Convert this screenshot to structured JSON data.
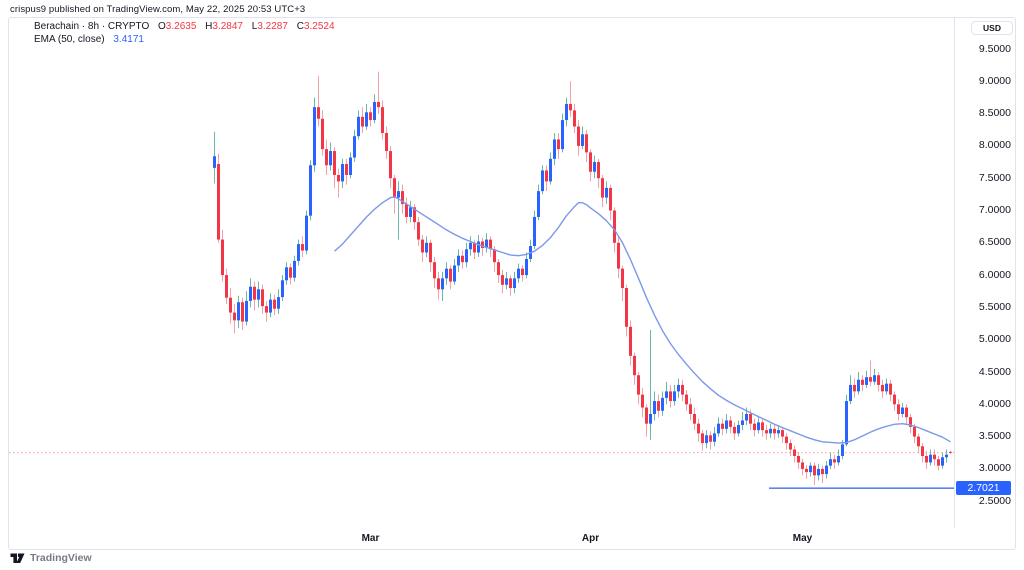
{
  "attribution": "crispus9 published on TradingView.com, May 22, 2025 20:53 UTC+3",
  "watermark_text": "TradingView",
  "legend": {
    "symbol_text": "Berachain · 8h · CRYPTO",
    "o_label": "O",
    "o_value": "3.2635",
    "h_label": "H",
    "h_value": "3.2847",
    "l_label": "L",
    "l_value": "3.2287",
    "c_label": "C",
    "c_value": "3.2524",
    "ema_label": "EMA (50, close)",
    "ema_value": "3.4171"
  },
  "axis": {
    "currency": "USD"
  },
  "colors": {
    "up_body": "#2962ff",
    "up_wick": "#6ab8ac",
    "down_body": "#f23645",
    "down_wick": "#f5a0a8",
    "ema_line": "#7d98e8",
    "support_line": "#5e84f2",
    "current_price_line": "#f2364580",
    "label_bg": "#2962ff",
    "axis_text": "#131722",
    "border": "#e0e3eb"
  },
  "chart_data": {
    "type": "candlestick",
    "title": "Berachain · 8h · CRYPTO",
    "ylabel": "USD",
    "grid": false,
    "legend_position": "top-left",
    "y_axis_range": [
      2.3,
      9.6
    ],
    "price_ticks": [
      9.5,
      9.0,
      8.5,
      8.0,
      7.5,
      7.0,
      6.5,
      6.0,
      5.5,
      5.0,
      4.5,
      4.0,
      3.5,
      3.0,
      2.5
    ],
    "time_ticks": [
      {
        "label": "Mar",
        "index": 39
      },
      {
        "label": "Apr",
        "index": 94
      },
      {
        "label": "May",
        "index": 147
      }
    ],
    "current_price": 3.2524,
    "ohlc_current": {
      "open": 3.2635,
      "high": 3.2847,
      "low": 3.2287,
      "close": 3.2524
    },
    "support_line": {
      "price": 2.7021,
      "label": "2.7021",
      "from_index": 139
    },
    "candles": [
      [
        7.66,
        8.22,
        7.42,
        7.84
      ],
      [
        7.72,
        7.88,
        6.5,
        6.55
      ],
      [
        6.55,
        6.7,
        5.9,
        6.0
      ],
      [
        6.0,
        6.1,
        5.55,
        5.65
      ],
      [
        5.65,
        5.8,
        5.25,
        5.42
      ],
      [
        5.42,
        5.55,
        5.1,
        5.3
      ],
      [
        5.3,
        5.68,
        5.18,
        5.58
      ],
      [
        5.58,
        5.65,
        5.15,
        5.28
      ],
      [
        5.28,
        5.75,
        5.22,
        5.6
      ],
      [
        5.6,
        5.95,
        5.5,
        5.82
      ],
      [
        5.82,
        5.9,
        5.45,
        5.62
      ],
      [
        5.62,
        5.9,
        5.5,
        5.78
      ],
      [
        5.78,
        5.85,
        5.4,
        5.52
      ],
      [
        5.52,
        5.6,
        5.28,
        5.42
      ],
      [
        5.42,
        5.72,
        5.35,
        5.62
      ],
      [
        5.62,
        5.7,
        5.38,
        5.48
      ],
      [
        5.48,
        5.78,
        5.4,
        5.66
      ],
      [
        5.66,
        6.0,
        5.6,
        5.92
      ],
      [
        5.92,
        6.2,
        5.85,
        6.12
      ],
      [
        6.12,
        6.18,
        5.85,
        5.96
      ],
      [
        5.96,
        6.3,
        5.9,
        6.22
      ],
      [
        6.22,
        6.55,
        6.15,
        6.48
      ],
      [
        6.48,
        6.6,
        6.28,
        6.38
      ],
      [
        6.38,
        7.0,
        6.32,
        6.92
      ],
      [
        6.92,
        7.78,
        6.85,
        7.7
      ],
      [
        7.7,
        8.75,
        7.6,
        8.6
      ],
      [
        8.6,
        9.08,
        8.3,
        8.42
      ],
      [
        8.42,
        8.55,
        7.85,
        7.95
      ],
      [
        7.95,
        8.1,
        7.55,
        7.7
      ],
      [
        7.7,
        8.05,
        7.62,
        7.92
      ],
      [
        7.92,
        7.98,
        7.35,
        7.55
      ],
      [
        7.55,
        7.65,
        7.2,
        7.45
      ],
      [
        7.45,
        7.8,
        7.35,
        7.72
      ],
      [
        7.72,
        7.8,
        7.4,
        7.55
      ],
      [
        7.55,
        7.9,
        7.5,
        7.82
      ],
      [
        7.82,
        8.25,
        7.75,
        8.15
      ],
      [
        8.15,
        8.55,
        8.1,
        8.45
      ],
      [
        8.45,
        8.6,
        8.2,
        8.3
      ],
      [
        8.3,
        8.65,
        8.25,
        8.52
      ],
      [
        8.52,
        8.6,
        8.3,
        8.4
      ],
      [
        8.4,
        8.8,
        8.35,
        8.68
      ],
      [
        8.68,
        9.15,
        8.5,
        8.6
      ],
      [
        8.6,
        8.7,
        8.1,
        8.2
      ],
      [
        8.2,
        8.3,
        7.8,
        7.92
      ],
      [
        7.92,
        8.0,
        7.35,
        7.5
      ],
      [
        7.5,
        7.55,
        6.95,
        7.2
      ],
      [
        7.2,
        7.45,
        6.55,
        7.3
      ],
      [
        7.3,
        7.4,
        6.95,
        7.1
      ],
      [
        7.1,
        7.2,
        6.8,
        6.9
      ],
      [
        6.9,
        7.15,
        6.82,
        7.05
      ],
      [
        7.05,
        7.1,
        6.7,
        6.82
      ],
      [
        6.82,
        6.9,
        6.45,
        6.55
      ],
      [
        6.55,
        6.62,
        6.2,
        6.35
      ],
      [
        6.35,
        6.6,
        6.28,
        6.5
      ],
      [
        6.5,
        6.55,
        6.05,
        6.2
      ],
      [
        6.2,
        6.28,
        5.8,
        5.95
      ],
      [
        5.95,
        6.05,
        5.62,
        5.78
      ],
      [
        5.78,
        6.05,
        5.6,
        5.95
      ],
      [
        5.95,
        6.2,
        5.85,
        6.1
      ],
      [
        6.1,
        6.15,
        5.78,
        5.9
      ],
      [
        5.9,
        6.25,
        5.85,
        6.15
      ],
      [
        6.15,
        6.4,
        6.05,
        6.3
      ],
      [
        6.3,
        6.38,
        6.1,
        6.2
      ],
      [
        6.2,
        6.5,
        6.12,
        6.4
      ],
      [
        6.4,
        6.6,
        6.3,
        6.5
      ],
      [
        6.5,
        6.55,
        6.25,
        6.35
      ],
      [
        6.35,
        6.62,
        6.28,
        6.52
      ],
      [
        6.52,
        6.58,
        6.3,
        6.42
      ],
      [
        6.42,
        6.65,
        6.35,
        6.55
      ],
      [
        6.55,
        6.6,
        6.28,
        6.4
      ],
      [
        6.4,
        6.45,
        6.05,
        6.2
      ],
      [
        6.2,
        6.25,
        5.88,
        6.0
      ],
      [
        6.0,
        6.08,
        5.72,
        5.85
      ],
      [
        5.85,
        6.05,
        5.78,
        5.95
      ],
      [
        5.95,
        6.0,
        5.68,
        5.8
      ],
      [
        5.8,
        6.05,
        5.72,
        5.95
      ],
      [
        5.95,
        6.18,
        5.88,
        6.1
      ],
      [
        6.1,
        6.15,
        5.9,
        6.0
      ],
      [
        6.0,
        6.35,
        5.95,
        6.25
      ],
      [
        6.25,
        6.55,
        6.2,
        6.45
      ],
      [
        6.45,
        7.0,
        6.4,
        6.9
      ],
      [
        6.9,
        7.4,
        6.85,
        7.3
      ],
      [
        7.3,
        7.7,
        7.25,
        7.62
      ],
      [
        7.62,
        7.7,
        7.3,
        7.45
      ],
      [
        7.45,
        7.9,
        7.4,
        7.8
      ],
      [
        7.8,
        8.2,
        7.7,
        8.1
      ],
      [
        8.1,
        8.2,
        7.8,
        7.95
      ],
      [
        7.95,
        8.5,
        7.9,
        8.4
      ],
      [
        8.4,
        8.75,
        8.3,
        8.65
      ],
      [
        8.65,
        9.0,
        8.45,
        8.55
      ],
      [
        8.55,
        8.65,
        8.2,
        8.3
      ],
      [
        8.3,
        8.4,
        7.85,
        8.0
      ],
      [
        8.0,
        8.3,
        7.95,
        8.18
      ],
      [
        8.18,
        8.25,
        7.75,
        7.9
      ],
      [
        7.9,
        7.95,
        7.45,
        7.6
      ],
      [
        7.6,
        7.85,
        7.5,
        7.75
      ],
      [
        7.75,
        7.8,
        7.35,
        7.5
      ],
      [
        7.5,
        7.55,
        7.05,
        7.2
      ],
      [
        7.2,
        7.45,
        7.1,
        7.35
      ],
      [
        7.35,
        7.4,
        6.85,
        7.0
      ],
      [
        7.0,
        7.05,
        6.35,
        6.5
      ],
      [
        6.5,
        6.6,
        5.95,
        6.1
      ],
      [
        6.1,
        6.15,
        5.6,
        5.8
      ],
      [
        5.8,
        5.85,
        5.05,
        5.2
      ],
      [
        5.2,
        5.3,
        4.6,
        4.75
      ],
      [
        4.75,
        4.8,
        4.3,
        4.45
      ],
      [
        4.45,
        4.5,
        4.0,
        4.15
      ],
      [
        4.15,
        4.25,
        3.8,
        3.95
      ],
      [
        3.95,
        4.0,
        3.5,
        3.7
      ],
      [
        3.7,
        5.15,
        3.45,
        3.85
      ],
      [
        3.85,
        4.2,
        3.75,
        4.05
      ],
      [
        4.05,
        4.15,
        3.8,
        3.9
      ],
      [
        3.9,
        4.2,
        3.82,
        4.1
      ],
      [
        4.1,
        4.35,
        4.0,
        4.2
      ],
      [
        4.2,
        4.3,
        3.95,
        4.05
      ],
      [
        4.05,
        4.3,
        3.98,
        4.2
      ],
      [
        4.2,
        4.4,
        4.1,
        4.3
      ],
      [
        4.3,
        4.38,
        4.05,
        4.15
      ],
      [
        4.15,
        4.22,
        3.9,
        4.0
      ],
      [
        4.0,
        4.1,
        3.75,
        3.85
      ],
      [
        3.85,
        3.95,
        3.6,
        3.7
      ],
      [
        3.7,
        3.78,
        3.42,
        3.55
      ],
      [
        3.55,
        3.6,
        3.28,
        3.4
      ],
      [
        3.4,
        3.6,
        3.32,
        3.52
      ],
      [
        3.52,
        3.58,
        3.3,
        3.42
      ],
      [
        3.42,
        3.65,
        3.35,
        3.55
      ],
      [
        3.55,
        3.8,
        3.5,
        3.7
      ],
      [
        3.7,
        3.78,
        3.52,
        3.62
      ],
      [
        3.62,
        3.85,
        3.55,
        3.75
      ],
      [
        3.75,
        3.82,
        3.55,
        3.65
      ],
      [
        3.65,
        3.72,
        3.45,
        3.55
      ],
      [
        3.55,
        3.75,
        3.5,
        3.68
      ],
      [
        3.68,
        3.88,
        3.6,
        3.75
      ],
      [
        3.75,
        3.95,
        3.68,
        3.85
      ],
      [
        3.85,
        3.92,
        3.6,
        3.7
      ],
      [
        3.7,
        3.78,
        3.5,
        3.6
      ],
      [
        3.6,
        3.8,
        3.55,
        3.72
      ],
      [
        3.72,
        3.78,
        3.5,
        3.6
      ],
      [
        3.6,
        3.68,
        3.45,
        3.55
      ],
      [
        3.55,
        3.7,
        3.48,
        3.62
      ],
      [
        3.62,
        3.68,
        3.45,
        3.55
      ],
      [
        3.55,
        3.68,
        3.48,
        3.6
      ],
      [
        3.6,
        3.65,
        3.4,
        3.5
      ],
      [
        3.5,
        3.56,
        3.3,
        3.4
      ],
      [
        3.4,
        3.46,
        3.2,
        3.3
      ],
      [
        3.3,
        3.36,
        3.1,
        3.2
      ],
      [
        3.2,
        3.26,
        3.0,
        3.1
      ],
      [
        3.1,
        3.16,
        2.9,
        3.0
      ],
      [
        3.0,
        3.06,
        2.85,
        2.95
      ],
      [
        2.95,
        3.1,
        2.88,
        3.05
      ],
      [
        3.05,
        3.1,
        2.75,
        2.9
      ],
      [
        2.9,
        3.08,
        2.82,
        3.0
      ],
      [
        3.0,
        3.05,
        2.78,
        2.92
      ],
      [
        2.92,
        3.12,
        2.85,
        3.05
      ],
      [
        3.05,
        3.25,
        3.0,
        3.15
      ],
      [
        3.15,
        3.22,
        3.0,
        3.1
      ],
      [
        3.1,
        3.3,
        3.05,
        3.2
      ],
      [
        3.2,
        3.45,
        3.15,
        3.38
      ],
      [
        3.38,
        4.15,
        3.35,
        4.05
      ],
      [
        4.05,
        4.45,
        4.0,
        4.3
      ],
      [
        4.3,
        4.4,
        4.1,
        4.2
      ],
      [
        4.2,
        4.5,
        4.15,
        4.38
      ],
      [
        4.38,
        4.45,
        4.2,
        4.3
      ],
      [
        4.3,
        4.52,
        4.25,
        4.42
      ],
      [
        4.42,
        4.68,
        4.28,
        4.35
      ],
      [
        4.35,
        4.55,
        4.3,
        4.45
      ],
      [
        4.45,
        4.5,
        4.2,
        4.3
      ],
      [
        4.3,
        4.38,
        4.1,
        4.2
      ],
      [
        4.2,
        4.4,
        4.15,
        4.32
      ],
      [
        4.32,
        4.38,
        4.05,
        4.15
      ],
      [
        4.15,
        4.2,
        3.9,
        4.0
      ],
      [
        4.0,
        4.08,
        3.75,
        3.85
      ],
      [
        3.85,
        4.02,
        3.8,
        3.95
      ],
      [
        3.95,
        4.0,
        3.7,
        3.8
      ],
      [
        3.8,
        3.85,
        3.55,
        3.65
      ],
      [
        3.65,
        3.7,
        3.4,
        3.5
      ],
      [
        3.5,
        3.55,
        3.25,
        3.35
      ],
      [
        3.35,
        3.4,
        3.1,
        3.2
      ],
      [
        3.2,
        3.28,
        3.0,
        3.1
      ],
      [
        3.1,
        3.3,
        3.05,
        3.22
      ],
      [
        3.22,
        3.3,
        3.05,
        3.15
      ],
      [
        3.15,
        3.2,
        2.98,
        3.05
      ],
      [
        3.05,
        3.25,
        3.0,
        3.18
      ],
      [
        3.18,
        3.3,
        3.1,
        3.22
      ],
      [
        3.2635,
        3.2847,
        3.2287,
        3.2524
      ]
    ],
    "ema": {
      "name": "EMA (50, close)",
      "last_value": 3.4171,
      "points": [
        [
          30,
          6.37
        ],
        [
          32,
          6.48
        ],
        [
          34,
          6.62
        ],
        [
          36,
          6.76
        ],
        [
          38,
          6.9
        ],
        [
          40,
          7.02
        ],
        [
          42,
          7.12
        ],
        [
          44,
          7.2
        ],
        [
          45,
          7.21
        ],
        [
          46,
          7.18
        ],
        [
          48,
          7.1
        ],
        [
          50,
          7.02
        ],
        [
          52,
          6.94
        ],
        [
          54,
          6.86
        ],
        [
          56,
          6.78
        ],
        [
          58,
          6.7
        ],
        [
          60,
          6.63
        ],
        [
          62,
          6.57
        ],
        [
          64,
          6.52
        ],
        [
          66,
          6.47
        ],
        [
          68,
          6.43
        ],
        [
          70,
          6.39
        ],
        [
          72,
          6.35
        ],
        [
          74,
          6.31
        ],
        [
          76,
          6.3
        ],
        [
          78,
          6.32
        ],
        [
          80,
          6.37
        ],
        [
          82,
          6.46
        ],
        [
          84,
          6.58
        ],
        [
          86,
          6.74
        ],
        [
          88,
          6.92
        ],
        [
          90,
          7.06
        ],
        [
          91,
          7.12
        ],
        [
          92,
          7.12
        ],
        [
          93,
          7.09
        ],
        [
          94,
          7.04
        ],
        [
          96,
          6.95
        ],
        [
          98,
          6.84
        ],
        [
          100,
          6.7
        ],
        [
          102,
          6.5
        ],
        [
          104,
          6.24
        ],
        [
          106,
          5.95
        ],
        [
          108,
          5.65
        ],
        [
          110,
          5.38
        ],
        [
          112,
          5.14
        ],
        [
          114,
          4.94
        ],
        [
          116,
          4.77
        ],
        [
          118,
          4.62
        ],
        [
          120,
          4.48
        ],
        [
          122,
          4.35
        ],
        [
          124,
          4.24
        ],
        [
          126,
          4.14
        ],
        [
          128,
          4.06
        ],
        [
          130,
          3.99
        ],
        [
          132,
          3.93
        ],
        [
          134,
          3.87
        ],
        [
          136,
          3.81
        ],
        [
          138,
          3.75
        ],
        [
          140,
          3.69
        ],
        [
          142,
          3.64
        ],
        [
          144,
          3.59
        ],
        [
          146,
          3.54
        ],
        [
          148,
          3.49
        ],
        [
          150,
          3.45
        ],
        [
          152,
          3.42
        ],
        [
          154,
          3.41
        ],
        [
          156,
          3.4
        ],
        [
          158,
          3.41
        ],
        [
          160,
          3.45
        ],
        [
          162,
          3.51
        ],
        [
          164,
          3.57
        ],
        [
          166,
          3.62
        ],
        [
          168,
          3.66
        ],
        [
          170,
          3.69
        ],
        [
          172,
          3.7
        ],
        [
          174,
          3.68
        ],
        [
          176,
          3.64
        ],
        [
          178,
          3.59
        ],
        [
          180,
          3.54
        ],
        [
          182,
          3.49
        ],
        [
          184,
          3.42
        ]
      ]
    }
  }
}
